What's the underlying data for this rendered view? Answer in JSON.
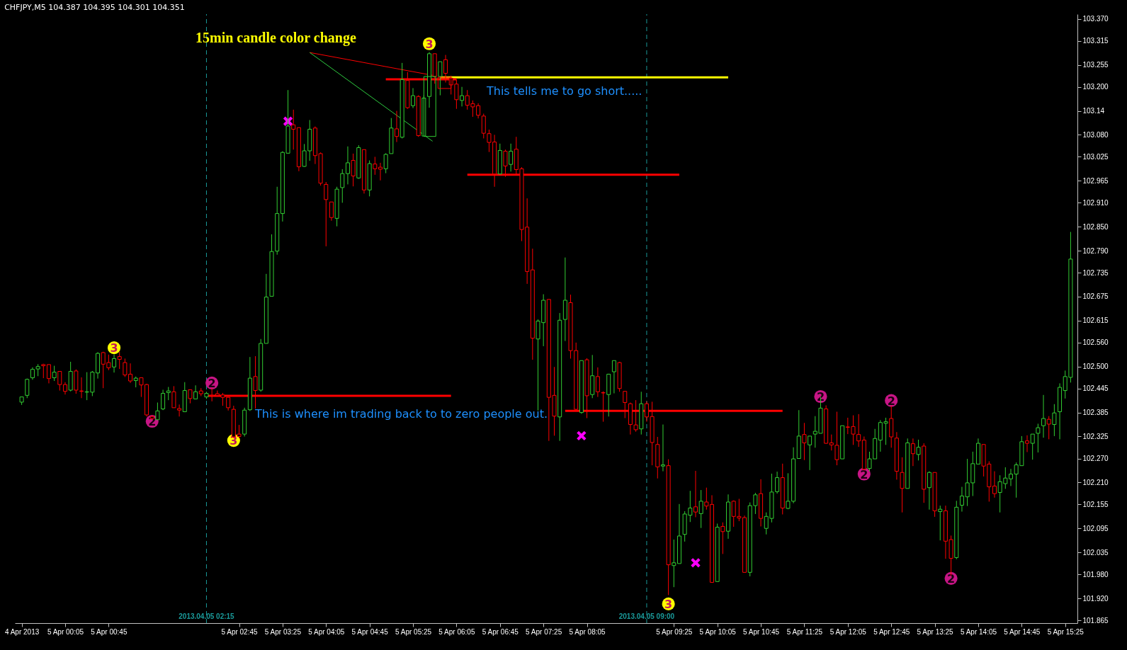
{
  "chart_data": {
    "type": "candlestick",
    "title": "CHFJPY,M5  104.387 104.395 104.301 104.351",
    "xlim": [
      "2013-04-04T23:22",
      "2013-04-05T15:33"
    ],
    "ylim": [
      101.858,
      103.382
    ],
    "xticks": [
      {
        "value": "2013-04-04T23:25",
        "label": "4 Apr 2013"
      },
      {
        "value": "2013-04-05T00:05",
        "label": "5 Apr 00:05"
      },
      {
        "value": "2013-04-05T00:45",
        "label": "5 Apr 00:45"
      },
      {
        "value": "2013-04-05T02:45",
        "label": "5 Apr 02:45"
      },
      {
        "value": "2013-04-05T03:25",
        "label": "5 Apr 03:25"
      },
      {
        "value": "2013-04-05T04:05",
        "label": "5 Apr 04:05"
      },
      {
        "value": "2013-04-05T04:45",
        "label": "5 Apr 04:45"
      },
      {
        "value": "2013-04-05T05:25",
        "label": "5 Apr 05:25"
      },
      {
        "value": "2013-04-05T06:05",
        "label": "5 Apr 06:05"
      },
      {
        "value": "2013-04-05T06:45",
        "label": "5 Apr 06:45"
      },
      {
        "value": "2013-04-05T07:25",
        "label": "5 Apr 07:25"
      },
      {
        "value": "2013-04-05T08:05",
        "label": "5 Apr 08:05"
      },
      {
        "value": "2013-04-05T09:25",
        "label": "5 Apr 09:25"
      },
      {
        "value": "2013-04-05T10:05",
        "label": "5 Apr 10:05"
      },
      {
        "value": "2013-04-05T10:45",
        "label": "5 Apr 10:45"
      },
      {
        "value": "2013-04-05T11:25",
        "label": "5 Apr 11:25"
      },
      {
        "value": "2013-04-05T12:05",
        "label": "5 Apr 12:05"
      },
      {
        "value": "2013-04-05T12:45",
        "label": "5 Apr 12:45"
      },
      {
        "value": "2013-04-05T13:25",
        "label": "5 Apr 13:25"
      },
      {
        "value": "2013-04-05T14:05",
        "label": "5 Apr 14:05"
      },
      {
        "value": "2013-04-05T14:45",
        "label": "5 Apr 14:45"
      },
      {
        "value": "2013-04-05T15:25",
        "label": "5 Apr 15:25"
      }
    ],
    "yticks": [
      {
        "value": 103.37,
        "label": "103.370"
      },
      103.315,
      103.255,
      {
        "value": 103.2,
        "label": "103.200"
      },
      103.14,
      {
        "value": 103.08,
        "label": "103.080"
      },
      103.025,
      102.965,
      {
        "value": 102.91,
        "label": "102.910"
      },
      {
        "value": 102.85,
        "label": "102.850"
      },
      {
        "value": 102.79,
        "label": "102.790"
      },
      102.735,
      102.675,
      102.615,
      {
        "value": 102.56,
        "label": "102.560"
      },
      {
        "value": 102.5,
        "label": "102.500"
      },
      102.445,
      102.385,
      102.325,
      {
        "value": 102.27,
        "label": "102.270"
      },
      {
        "value": 102.21,
        "label": "102.210"
      },
      102.155,
      102.095,
      102.035,
      {
        "value": 101.98,
        "label": "101.980"
      },
      {
        "value": 101.92,
        "label": "101.920"
      },
      101.865
    ],
    "x": [
      "2013-04-04T23:25",
      "2013-04-04T23:30",
      "2013-04-04T23:35",
      "2013-04-04T23:40",
      "2013-04-04T23:45",
      "2013-04-04T23:50",
      "2013-04-04T23:55",
      "2013-04-05T00:00",
      "2013-04-05T00:05",
      "2013-04-05T00:10",
      "2013-04-05T00:15",
      "2013-04-05T00:20",
      "2013-04-05T00:25",
      "2013-04-05T00:30",
      "2013-04-05T00:35",
      "2013-04-05T00:40",
      "2013-04-05T00:45",
      "2013-04-05T00:50",
      "2013-04-05T00:55",
      "2013-04-05T01:00",
      "2013-04-05T01:05",
      "2013-04-05T01:10",
      "2013-04-05T01:15",
      "2013-04-05T01:20",
      "2013-04-05T01:25",
      "2013-04-05T01:30",
      "2013-04-05T01:35",
      "2013-04-05T01:40",
      "2013-04-05T01:45",
      "2013-04-05T01:50",
      "2013-04-05T01:55",
      "2013-04-05T02:00",
      "2013-04-05T02:05",
      "2013-04-05T02:10",
      "2013-04-05T02:15",
      "2013-04-05T02:20",
      "2013-04-05T02:25",
      "2013-04-05T02:30",
      "2013-04-05T02:35",
      "2013-04-05T02:40",
      "2013-04-05T02:45",
      "2013-04-05T02:50",
      "2013-04-05T02:55",
      "2013-04-05T03:00",
      "2013-04-05T03:05",
      "2013-04-05T03:10",
      "2013-04-05T03:15",
      "2013-04-05T03:20",
      "2013-04-05T03:25",
      "2013-04-05T03:30",
      "2013-04-05T03:35",
      "2013-04-05T03:40",
      "2013-04-05T03:45",
      "2013-04-05T03:50",
      "2013-04-05T03:55",
      "2013-04-05T04:00",
      "2013-04-05T04:05",
      "2013-04-05T04:10",
      "2013-04-05T04:15",
      "2013-04-05T04:20",
      "2013-04-05T04:25",
      "2013-04-05T04:30",
      "2013-04-05T04:35",
      "2013-04-05T04:40",
      "2013-04-05T04:45",
      "2013-04-05T04:50",
      "2013-04-05T04:55",
      "2013-04-05T05:00",
      "2013-04-05T05:05",
      "2013-04-05T05:10",
      "2013-04-05T05:15",
      "2013-04-05T05:20",
      "2013-04-05T05:25",
      "2013-04-05T05:30",
      "2013-04-05T05:35",
      "2013-04-05T05:40",
      "2013-04-05T05:45",
      "2013-04-05T05:50",
      "2013-04-05T05:55",
      "2013-04-05T06:00",
      "2013-04-05T06:05",
      "2013-04-05T06:10",
      "2013-04-05T06:15",
      "2013-04-05T06:20",
      "2013-04-05T06:25",
      "2013-04-05T06:30",
      "2013-04-05T06:35",
      "2013-04-05T06:40",
      "2013-04-05T06:45",
      "2013-04-05T06:50",
      "2013-04-05T06:55",
      "2013-04-05T07:00",
      "2013-04-05T07:05",
      "2013-04-05T07:10",
      "2013-04-05T07:15",
      "2013-04-05T07:20",
      "2013-04-05T07:25",
      "2013-04-05T07:30",
      "2013-04-05T07:35",
      "2013-04-05T07:40",
      "2013-04-05T07:45",
      "2013-04-05T07:50",
      "2013-04-05T07:55",
      "2013-04-05T08:00",
      "2013-04-05T08:05",
      "2013-04-05T08:10",
      "2013-04-05T08:15",
      "2013-04-05T08:20",
      "2013-04-05T08:25",
      "2013-04-05T08:30",
      "2013-04-05T08:35",
      "2013-04-05T08:40",
      "2013-04-05T08:45",
      "2013-04-05T08:50",
      "2013-04-05T08:55",
      "2013-04-05T09:00",
      "2013-04-05T09:05",
      "2013-04-05T09:10",
      "2013-04-05T09:15",
      "2013-04-05T09:20",
      "2013-04-05T09:25",
      "2013-04-05T09:30",
      "2013-04-05T09:35",
      "2013-04-05T09:40",
      "2013-04-05T09:45",
      "2013-04-05T09:50",
      "2013-04-05T09:55",
      "2013-04-05T10:00",
      "2013-04-05T10:05",
      "2013-04-05T10:10",
      "2013-04-05T10:15",
      "2013-04-05T10:20",
      "2013-04-05T10:25",
      "2013-04-05T10:30",
      "2013-04-05T10:35",
      "2013-04-05T10:40",
      "2013-04-05T10:45",
      "2013-04-05T10:50",
      "2013-04-05T10:55",
      "2013-04-05T11:00",
      "2013-04-05T11:05",
      "2013-04-05T11:10",
      "2013-04-05T11:15",
      "2013-04-05T11:20",
      "2013-04-05T11:25",
      "2013-04-05T11:30",
      "2013-04-05T11:35",
      "2013-04-05T11:40",
      "2013-04-05T11:45",
      "2013-04-05T11:50",
      "2013-04-05T11:55",
      "2013-04-05T12:00",
      "2013-04-05T12:05",
      "2013-04-05T12:10",
      "2013-04-05T12:15",
      "2013-04-05T12:20",
      "2013-04-05T12:25",
      "2013-04-05T12:30",
      "2013-04-05T12:35",
      "2013-04-05T12:40",
      "2013-04-05T12:45",
      "2013-04-05T12:50",
      "2013-04-05T12:55",
      "2013-04-05T13:00",
      "2013-04-05T13:05",
      "2013-04-05T13:10",
      "2013-04-05T13:15",
      "2013-04-05T13:20",
      "2013-04-05T13:25",
      "2013-04-05T13:30",
      "2013-04-05T13:35",
      "2013-04-05T13:40",
      "2013-04-05T13:45",
      "2013-04-05T13:50",
      "2013-04-05T13:55",
      "2013-04-05T14:00",
      "2013-04-05T14:05",
      "2013-04-05T14:10",
      "2013-04-05T14:15",
      "2013-04-05T14:20",
      "2013-04-05T14:25",
      "2013-04-05T14:30",
      "2013-04-05T14:35",
      "2013-04-05T14:40",
      "2013-04-05T14:45",
      "2013-04-05T14:50",
      "2013-04-05T14:55",
      "2013-04-05T15:00",
      "2013-04-05T15:05",
      "2013-04-05T15:10",
      "2013-04-05T15:15",
      "2013-04-05T15:20",
      "2013-04-05T15:25",
      "2013-04-05T15:30"
    ],
    "ohlc": [
      [
        102.411,
        102.424,
        102.404,
        102.424
      ],
      [
        102.428,
        102.47,
        102.421,
        102.468
      ],
      [
        102.472,
        102.498,
        102.467,
        102.493
      ],
      [
        102.494,
        102.506,
        102.476,
        102.5
      ],
      [
        102.505,
        102.507,
        102.471,
        102.502
      ],
      [
        102.505,
        102.505,
        102.458,
        102.47
      ],
      [
        102.472,
        102.502,
        102.464,
        102.486
      ],
      [
        102.488,
        102.488,
        102.44,
        102.455
      ],
      [
        102.455,
        102.461,
        102.43,
        102.438
      ],
      [
        102.441,
        102.512,
        102.438,
        102.488
      ],
      [
        102.489,
        102.493,
        102.432,
        102.441
      ],
      [
        102.439,
        102.473,
        102.421,
        102.438
      ],
      [
        102.436,
        102.486,
        102.416,
        102.437
      ],
      [
        102.436,
        102.489,
        102.426,
        102.486
      ],
      [
        102.484,
        102.536,
        102.47,
        102.533
      ],
      [
        102.535,
        102.537,
        102.446,
        102.506
      ],
      [
        102.51,
        102.53,
        102.491,
        102.497
      ],
      [
        102.499,
        102.53,
        102.485,
        102.52
      ],
      [
        102.525,
        102.537,
        102.494,
        102.518
      ],
      [
        102.51,
        102.52,
        102.474,
        102.479
      ],
      [
        102.481,
        102.508,
        102.459,
        102.464
      ],
      [
        102.465,
        102.475,
        102.448,
        102.471
      ],
      [
        102.472,
        102.472,
        102.424,
        102.454
      ],
      [
        102.455,
        102.457,
        102.375,
        102.379
      ],
      [
        102.375,
        102.378,
        102.367,
        102.37
      ],
      [
        102.367,
        102.41,
        102.367,
        102.389
      ],
      [
        102.394,
        102.442,
        102.391,
        102.433
      ],
      [
        102.435,
        102.449,
        102.416,
        102.439
      ],
      [
        102.437,
        102.451,
        102.397,
        102.397
      ],
      [
        102.395,
        102.405,
        102.375,
        102.391
      ],
      [
        102.387,
        102.461,
        102.386,
        102.44
      ],
      [
        102.442,
        102.442,
        102.408,
        102.42
      ],
      [
        102.419,
        102.453,
        102.419,
        102.437
      ],
      [
        102.439,
        102.446,
        102.426,
        102.432
      ],
      [
        102.424,
        102.437,
        102.419,
        102.433
      ],
      [
        102.428,
        102.446,
        102.413,
        102.426
      ],
      [
        102.432,
        102.44,
        102.425,
        102.428
      ],
      [
        102.429,
        102.434,
        102.402,
        102.423
      ],
      [
        102.423,
        102.423,
        102.39,
        102.397
      ],
      [
        102.393,
        102.402,
        102.321,
        102.324
      ],
      [
        102.331,
        102.354,
        102.321,
        102.325
      ],
      [
        102.331,
        102.397,
        102.325,
        102.391
      ],
      [
        102.392,
        102.524,
        102.389,
        102.471
      ],
      [
        102.475,
        102.526,
        102.395,
        102.44
      ],
      [
        102.441,
        102.569,
        102.437,
        102.558
      ],
      [
        102.558,
        102.732,
        102.558,
        102.674
      ],
      [
        102.676,
        102.831,
        102.676,
        102.788
      ],
      [
        102.789,
        102.95,
        102.78,
        102.883
      ],
      [
        102.883,
        103.039,
        102.863,
        103.036
      ],
      [
        103.034,
        103.192,
        103.034,
        103.102
      ],
      [
        103.105,
        103.143,
        103.043,
        103.094
      ],
      [
        103.098,
        103.098,
        102.989,
        103.0
      ],
      [
        103.001,
        103.057,
        103.0,
        103.04
      ],
      [
        103.04,
        103.117,
        103.015,
        103.094
      ],
      [
        103.097,
        103.101,
        103.007,
        103.028
      ],
      [
        103.033,
        103.036,
        102.953,
        102.959
      ],
      [
        102.956,
        102.962,
        102.801,
        102.918
      ],
      [
        102.912,
        102.912,
        102.865,
        102.873
      ],
      [
        102.871,
        102.95,
        102.851,
        102.944
      ],
      [
        102.948,
        102.994,
        102.91,
        102.983
      ],
      [
        102.983,
        103.051,
        102.956,
        103.01
      ],
      [
        103.016,
        103.033,
        102.951,
        102.977
      ],
      [
        102.972,
        103.054,
        102.97,
        103.048
      ],
      [
        103.043,
        103.043,
        102.933,
        102.942
      ],
      [
        102.942,
        103.016,
        102.926,
        103.008
      ],
      [
        103.007,
        103.025,
        102.98,
        102.995
      ],
      [
        102.999,
        103.01,
        102.966,
        102.994
      ],
      [
        102.995,
        103.034,
        102.984,
        103.031
      ],
      [
        103.033,
        103.122,
        103.033,
        103.097
      ],
      [
        103.095,
        103.14,
        103.062,
        103.076
      ],
      [
        103.074,
        103.26,
        103.071,
        103.218
      ],
      [
        103.216,
        103.237,
        103.145,
        103.148
      ],
      [
        103.153,
        103.197,
        103.147,
        103.178
      ],
      [
        103.176,
        103.179,
        103.075,
        103.078
      ],
      [
        103.077,
        103.179,
        103.077,
        103.172
      ],
      [
        103.176,
        103.287,
        103.148,
        103.283
      ],
      [
        103.283,
        103.283,
        103.208,
        103.226
      ],
      [
        103.226,
        103.263,
        103.179,
        103.263
      ],
      [
        103.268,
        103.28,
        103.211,
        103.234
      ],
      [
        103.222,
        103.228,
        103.181,
        103.205
      ],
      [
        103.207,
        103.218,
        103.145,
        103.168
      ],
      [
        103.166,
        103.2,
        103.151,
        103.178
      ],
      [
        103.178,
        103.192,
        103.143,
        103.154
      ],
      [
        103.158,
        103.166,
        103.125,
        103.15
      ],
      [
        103.153,
        103.159,
        103.121,
        103.129
      ],
      [
        103.127,
        103.133,
        103.071,
        103.084
      ],
      [
        103.083,
        103.093,
        103.037,
        103.061
      ],
      [
        103.062,
        103.08,
        102.95,
        102.982
      ],
      [
        102.982,
        103.058,
        102.982,
        103.041
      ],
      [
        103.039,
        103.043,
        102.975,
        103.002
      ],
      [
        103.006,
        103.058,
        102.988,
        103.039
      ],
      [
        103.044,
        103.075,
        102.981,
        102.993
      ],
      [
        102.995,
        102.999,
        102.814,
        102.843
      ],
      [
        102.849,
        102.921,
        102.707,
        102.738
      ],
      [
        102.742,
        102.795,
        102.517,
        102.571
      ],
      [
        102.569,
        102.618,
        102.39,
        102.614
      ],
      [
        102.61,
        102.681,
        102.551,
        102.666
      ],
      [
        102.668,
        102.668,
        102.314,
        102.423
      ],
      [
        102.428,
        102.499,
        102.327,
        102.376
      ],
      [
        102.374,
        102.634,
        102.314,
        102.616
      ],
      [
        102.618,
        102.773,
        102.564,
        102.666
      ],
      [
        102.66,
        102.68,
        102.52,
        102.54
      ],
      [
        102.54,
        102.56,
        102.39,
        102.393
      ],
      [
        102.385,
        102.515,
        102.382,
        102.515
      ],
      [
        102.517,
        102.521,
        102.371,
        102.427
      ],
      [
        102.43,
        102.529,
        102.421,
        102.477
      ],
      [
        102.475,
        102.498,
        102.424,
        102.437
      ],
      [
        102.435,
        102.438,
        102.362,
        102.434
      ],
      [
        102.43,
        102.482,
        102.375,
        102.481
      ],
      [
        102.487,
        102.515,
        102.433,
        102.515
      ],
      [
        102.51,
        102.512,
        102.437,
        102.445
      ],
      [
        102.438,
        102.438,
        102.371,
        102.41
      ],
      [
        102.407,
        102.41,
        102.33,
        102.355
      ],
      [
        102.354,
        102.416,
        102.337,
        102.342
      ],
      [
        102.344,
        102.437,
        102.33,
        102.407
      ],
      [
        102.407,
        102.413,
        102.362,
        102.374
      ],
      [
        102.375,
        102.412,
        102.253,
        102.31
      ],
      [
        102.305,
        102.324,
        102.22,
        102.249
      ],
      [
        102.251,
        102.355,
        102.238,
        102.254
      ],
      [
        102.252,
        102.268,
        101.928,
        102.004
      ],
      [
        102.002,
        102.067,
        101.948,
        102.009
      ],
      [
        102.007,
        102.156,
        102.007,
        102.076
      ],
      [
        102.08,
        102.138,
        102.062,
        102.131
      ],
      [
        102.128,
        102.189,
        102.111,
        102.146
      ],
      [
        102.149,
        102.239,
        102.123,
        102.136
      ],
      [
        102.132,
        102.191,
        102.096,
        102.163
      ],
      [
        102.161,
        102.197,
        102.142,
        102.151
      ],
      [
        102.155,
        102.178,
        101.96,
        101.96
      ],
      [
        101.962,
        102.107,
        101.962,
        102.098
      ],
      [
        102.1,
        102.11,
        102.031,
        102.087
      ],
      [
        102.088,
        102.18,
        102.069,
        102.161
      ],
      [
        102.163,
        102.165,
        102.099,
        102.125
      ],
      [
        102.125,
        102.169,
        102.113,
        102.121
      ],
      [
        102.122,
        102.127,
        101.985,
        101.985
      ],
      [
        101.985,
        102.16,
        101.975,
        102.152
      ],
      [
        102.152,
        102.184,
        102.131,
        102.179
      ],
      [
        102.182,
        102.218,
        102.1,
        102.12
      ],
      [
        102.095,
        102.135,
        102.08,
        102.125
      ],
      [
        102.12,
        102.232,
        102.11,
        102.186
      ],
      [
        102.187,
        102.237,
        102.182,
        102.222
      ],
      [
        102.222,
        102.257,
        102.13,
        102.146
      ],
      [
        102.145,
        102.233,
        102.143,
        102.163
      ],
      [
        102.163,
        102.298,
        102.158,
        102.269
      ],
      [
        102.27,
        102.391,
        102.27,
        102.326
      ],
      [
        102.33,
        102.359,
        102.266,
        102.309
      ],
      [
        102.304,
        102.326,
        102.241,
        102.326
      ],
      [
        102.331,
        102.376,
        102.297,
        102.338
      ],
      [
        102.333,
        102.424,
        102.333,
        102.396
      ],
      [
        102.394,
        102.403,
        102.307,
        102.308
      ],
      [
        102.309,
        102.33,
        102.29,
        102.304
      ],
      [
        102.303,
        102.387,
        102.253,
        102.267
      ],
      [
        102.269,
        102.352,
        102.269,
        102.352
      ],
      [
        102.349,
        102.372,
        102.331,
        102.348
      ],
      [
        102.35,
        102.378,
        102.304,
        102.331
      ],
      [
        102.33,
        102.381,
        102.299,
        102.314
      ],
      [
        102.316,
        102.325,
        102.24,
        102.243
      ],
      [
        102.245,
        102.287,
        102.238,
        102.269
      ],
      [
        102.269,
        102.344,
        102.269,
        102.32
      ],
      [
        102.316,
        102.366,
        102.287,
        102.36
      ],
      [
        102.358,
        102.372,
        102.304,
        102.362
      ],
      [
        102.37,
        102.402,
        102.297,
        102.324
      ],
      [
        102.321,
        102.336,
        102.217,
        102.238
      ],
      [
        102.235,
        102.273,
        102.135,
        102.195
      ],
      [
        102.195,
        102.32,
        102.195,
        102.309
      ],
      [
        102.307,
        102.32,
        102.251,
        102.282
      ],
      [
        102.28,
        102.317,
        102.265,
        102.298
      ],
      [
        102.301,
        102.308,
        102.159,
        102.193
      ],
      [
        102.197,
        102.238,
        102.142,
        102.235
      ],
      [
        102.235,
        102.235,
        102.124,
        102.139
      ],
      [
        102.137,
        102.152,
        102.065,
        102.143
      ],
      [
        102.139,
        102.152,
        102.019,
        102.063
      ],
      [
        102.067,
        102.077,
        101.977,
        102.02
      ],
      [
        102.022,
        102.164,
        102.018,
        102.148
      ],
      [
        102.153,
        102.199,
        102.137,
        102.176
      ],
      [
        102.174,
        102.269,
        102.151,
        102.209
      ],
      [
        102.209,
        102.287,
        102.176,
        102.257
      ],
      [
        102.256,
        102.32,
        102.256,
        102.308
      ],
      [
        102.305,
        102.305,
        102.225,
        102.251
      ],
      [
        102.256,
        102.263,
        102.162,
        102.199
      ],
      [
        102.201,
        102.238,
        102.172,
        102.182
      ],
      [
        102.185,
        102.228,
        102.135,
        102.212
      ],
      [
        102.207,
        102.248,
        102.194,
        102.221
      ],
      [
        102.219,
        102.244,
        102.201,
        102.231
      ],
      [
        102.231,
        102.26,
        102.172,
        102.254
      ],
      [
        102.252,
        102.326,
        102.252,
        102.312
      ],
      [
        102.314,
        102.328,
        102.286,
        102.308
      ],
      [
        102.308,
        102.331,
        102.267,
        102.331
      ],
      [
        102.333,
        102.357,
        102.285,
        102.347
      ],
      [
        102.352,
        102.429,
        102.322,
        102.37
      ],
      [
        102.368,
        102.376,
        102.318,
        102.356
      ],
      [
        102.355,
        102.406,
        102.326,
        102.384
      ],
      [
        102.387,
        102.458,
        102.318,
        102.448
      ],
      [
        102.44,
        102.49,
        102.42,
        102.475
      ],
      [
        102.473,
        102.837,
        102.46,
        102.769
      ]
    ],
    "ref_lines": [
      {
        "axis": "x",
        "value": "2013-04-05T02:15",
        "label": "2013.04.05 02:15",
        "color": "#1a9a9a",
        "line_style": "dashed"
      },
      {
        "axis": "x",
        "value": "2013-04-05T09:00",
        "label": "2013.04.05 09:00",
        "color": "#1a9a9a",
        "line_style": "dashed"
      }
    ],
    "series": [
      {
        "type": "line",
        "color": "#ff0000",
        "x": [
          "2013-04-05T02:15",
          "2013-04-05T06:00"
        ],
        "values": [
          102.427,
          102.427
        ]
      },
      {
        "type": "line",
        "color": "#ff0000",
        "x": [
          "2013-04-05T06:15",
          "2013-04-05T09:30"
        ],
        "values": [
          102.98,
          102.98
        ]
      },
      {
        "type": "line",
        "color": "#ff0000",
        "x": [
          "2013-04-05T07:45",
          "2013-04-05T11:05"
        ],
        "values": [
          102.389,
          102.389
        ]
      },
      {
        "type": "line",
        "color": "#ffff00",
        "x": [
          "2013-04-05T05:50",
          "2013-04-05T10:15"
        ],
        "values": [
          103.224,
          103.224
        ]
      },
      {
        "type": "line",
        "color": "#ff0000",
        "x": [
          "2013-04-05T05:00",
          "2013-04-05T06:05"
        ],
        "values": [
          103.219,
          103.219
        ]
      },
      {
        "type": "line",
        "color": "#ff0000",
        "x": [
          "2013-04-05T03:50",
          "2013-04-05T05:43"
        ],
        "values": [
          103.286,
          103.229
        ]
      },
      {
        "type": "line",
        "color": "#2ecc40",
        "x": [
          "2013-04-05T03:50",
          "2013-04-05T05:43"
        ],
        "values": [
          103.286,
          103.064
        ]
      },
      {
        "type": "scatter",
        "marker": "cross",
        "color": "#ff00ff",
        "x": [
          "2013-04-05T03:30",
          "2013-04-05T08:00",
          "2013-04-05T09:45"
        ],
        "values": [
          103.114,
          102.327,
          102.009
        ]
      },
      {
        "type": "scatter",
        "name": "3",
        "marker": "circle",
        "color": "#ffff00",
        "x": [
          "2013-04-05T00:50",
          "2013-04-05T02:40",
          "2013-04-05T05:40",
          "2013-04-05T09:20"
        ],
        "values": [
          102.547,
          102.315,
          103.308,
          101.906
        ]
      },
      {
        "type": "scatter",
        "name": "2",
        "marker": "circle",
        "color": "#c71585",
        "x": [
          "2013-04-05T02:20",
          "2013-04-05T01:25",
          "2013-04-05T11:40",
          "2013-04-05T12:20",
          "2013-04-05T12:45",
          "2013-04-05T13:40"
        ],
        "values": [
          102.459,
          102.363,
          102.425,
          102.231,
          102.415,
          101.97
        ]
      }
    ],
    "annotations": [
      "15min candle color change",
      "This tells me to go short.....",
      "This is where im trading back to to zero people out."
    ]
  }
}
